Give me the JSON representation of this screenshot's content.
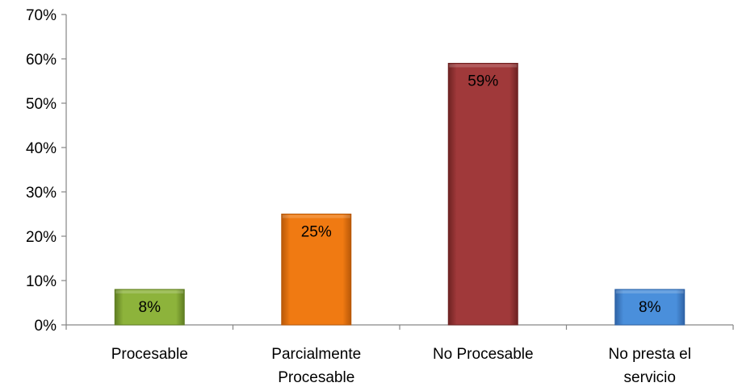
{
  "chart_data": {
    "type": "bar",
    "categories": [
      [
        "Procesable"
      ],
      [
        "Parcialmente",
        "Procesable"
      ],
      [
        "No Procesable"
      ],
      [
        "No presta el",
        "servicio"
      ]
    ],
    "values": [
      8,
      25,
      59,
      8
    ],
    "data_labels": [
      "8%",
      "25%",
      "59%",
      "8%"
    ],
    "bar_colors": [
      "#8db33b",
      "#f07a12",
      "#a0393a",
      "#4a8fdb"
    ],
    "bar_edge_colors": [
      "#5f7d22",
      "#b85808",
      "#6e2222",
      "#2f63a6"
    ],
    "ylim": [
      0,
      70
    ],
    "yticks": [
      "0%",
      "10%",
      "20%",
      "30%",
      "40%",
      "50%",
      "60%",
      "70%"
    ],
    "title": "",
    "xlabel": "",
    "ylabel": "",
    "grid": false,
    "legend": false
  }
}
